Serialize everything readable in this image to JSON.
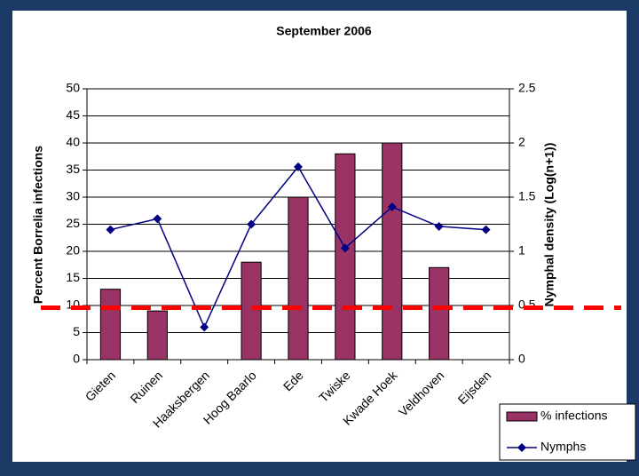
{
  "chart_data": {
    "type": "bar-line",
    "title": "September 2006",
    "ylabel": "Percent Borrelia infections",
    "y2label": "Nymphal density (Log(n+1))",
    "categories": [
      "Gieten",
      "Ruinen",
      "Haaksbergen",
      "Hoog Baarlo",
      "Ede",
      "Twiske",
      "Kwade Hoek",
      "Veldhoven",
      "Eijsden"
    ],
    "series": [
      {
        "name": "% infections",
        "type": "bar",
        "color": "#993366",
        "values": [
          13,
          9,
          0,
          18,
          30,
          38,
          40,
          17,
          0
        ]
      },
      {
        "name": "Nymphs",
        "type": "line",
        "axis": "y2",
        "color": "#000080",
        "values": [
          1.2,
          1.3,
          0.3,
          1.25,
          1.78,
          1.03,
          1.41,
          1.23,
          1.2
        ]
      }
    ],
    "reference_line": {
      "value": 0.48,
      "axis": "y2",
      "color": "#ff0000"
    },
    "ylim": [
      0,
      50
    ],
    "yticks": [
      0,
      5,
      10,
      15,
      20,
      25,
      30,
      35,
      40,
      45,
      50
    ],
    "y2lim": [
      0,
      2.5
    ],
    "y2ticks": [
      0,
      0.5,
      1,
      1.5,
      2,
      2.5
    ],
    "grid": true,
    "legend": "lower right"
  }
}
